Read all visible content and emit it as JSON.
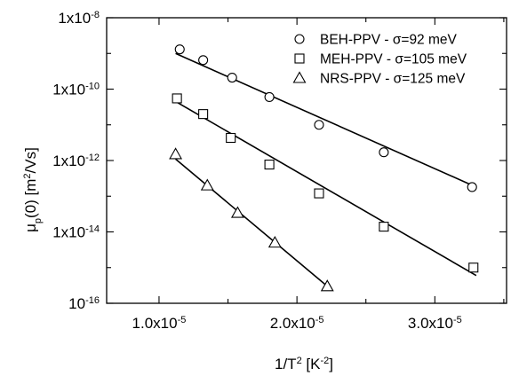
{
  "chart_data": {
    "type": "scatter",
    "title": "",
    "xlabel": "1/T² [K⁻²]",
    "ylabel": "μp(0) [m²/Vs]",
    "xscale": "linear",
    "yscale": "log",
    "xlim": [
      6.2e-06,
      3.52e-05
    ],
    "ylim": [
      1e-16,
      1e-08
    ],
    "grid": false,
    "legend_position": "top-right",
    "x_ticks": [
      1e-05,
      2e-05,
      3e-05
    ],
    "x_tick_labels": [
      {
        "mantissa": "1.0x10",
        "exp": "-5"
      },
      {
        "mantissa": "2.0x10",
        "exp": "-5"
      },
      {
        "mantissa": "3.0x10",
        "exp": "-5"
      }
    ],
    "y_ticks": [
      1e-16,
      1e-14,
      1e-12,
      1e-10,
      1e-08
    ],
    "y_tick_labels": [
      {
        "mantissa": "10",
        "exp": "-16"
      },
      {
        "mantissa": "1x10",
        "exp": "-14"
      },
      {
        "mantissa": "1x10",
        "exp": "-12"
      },
      {
        "mantissa": "1x10",
        "exp": "-10"
      },
      {
        "mantissa": "1x10",
        "exp": "-8"
      }
    ],
    "series": [
      {
        "name": "BEH-PPV - σ=92 meV",
        "marker": "circle",
        "x": [
          1.15e-05,
          1.32e-05,
          1.53e-05,
          1.8e-05,
          2.16e-05,
          2.63e-05,
          3.27e-05
        ],
        "y": [
          1.3e-09,
          6.5e-10,
          2.1e-10,
          6e-11,
          1e-11,
          1.7e-12,
          1.8e-13
        ],
        "fit": {
          "x": [
            1.12e-05,
            3.3e-05
          ],
          "y": [
            1e-09,
            1.8e-13
          ]
        }
      },
      {
        "name": "MEH-PPV - σ=105 meV",
        "marker": "square",
        "x": [
          1.13e-05,
          1.32e-05,
          1.52e-05,
          1.8e-05,
          2.16e-05,
          2.63e-05,
          3.28e-05
        ],
        "y": [
          5.5e-11,
          2e-11,
          4.3e-12,
          7.7e-13,
          1.2e-13,
          1.4e-14,
          1e-15
        ],
        "fit": {
          "x": [
            1.12e-05,
            3.3e-05
          ],
          "y": [
            4.5e-11,
            6e-16
          ]
        }
      },
      {
        "name": "NRS-PPV - σ=125 meV",
        "marker": "triangle",
        "x": [
          1.12e-05,
          1.35e-05,
          1.57e-05,
          1.84e-05,
          2.22e-05
        ],
        "y": [
          1.5e-12,
          2e-13,
          3.4e-14,
          5e-15,
          3e-16
        ],
        "fit": {
          "x": [
            1.12e-05,
            2.22e-05
          ],
          "y": [
            1.1e-12,
            3e-16
          ]
        }
      }
    ]
  }
}
